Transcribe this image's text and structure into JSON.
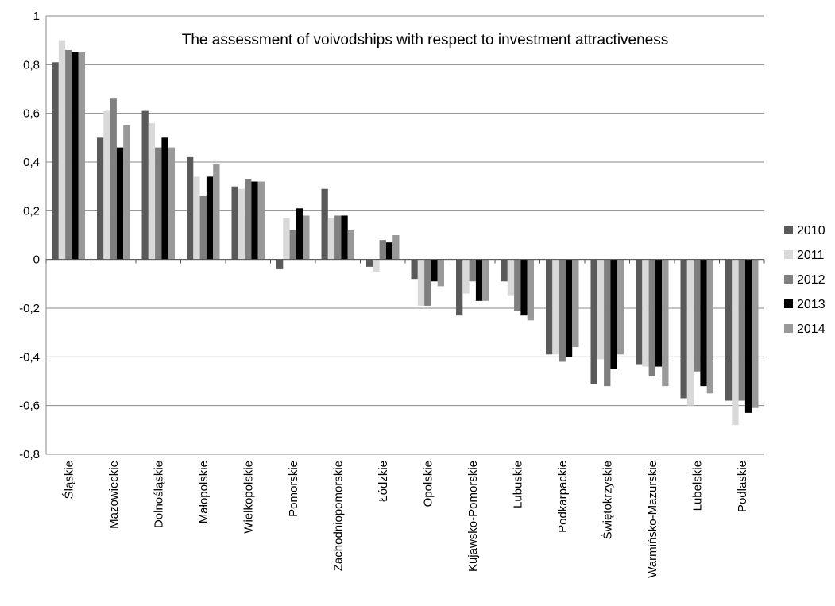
{
  "chart_data": {
    "type": "bar",
    "title": "The assessment of voivodships with respect to investment attractiveness",
    "xlabel": "",
    "ylabel": "",
    "ylim": [
      -0.8,
      1
    ],
    "yticks": [
      "1",
      "0,8",
      "0,6",
      "0,4",
      "0,2",
      "0",
      "-0,2",
      "-0,4",
      "-0,6",
      "-0,8"
    ],
    "grid": true,
    "legend_position": "right",
    "categories": [
      "Śląskie",
      "Mazowieckie",
      "Dolnośląskie",
      "Małopolskie",
      "Wielkopolskie",
      "Pomorskie",
      "Zachodniopomorskie",
      "Łódzkie",
      "Opolskie",
      "Kujawsko-Pomorskie",
      "Lubuskie",
      "Podkarpackie",
      "Świętokrzyskie",
      "Warmińsko-Mazurskie",
      "Lubelskie",
      "Podlaskie"
    ],
    "series": [
      {
        "name": "2010",
        "color": "#5a5a5a",
        "values": [
          0.81,
          0.5,
          0.61,
          0.42,
          0.3,
          -0.04,
          0.29,
          -0.03,
          -0.08,
          -0.23,
          -0.09,
          -0.39,
          -0.51,
          -0.43,
          -0.57,
          -0.58
        ]
      },
      {
        "name": "2011",
        "color": "#d9d9d9",
        "values": [
          0.9,
          0.61,
          0.56,
          0.34,
          0.29,
          0.17,
          0.17,
          -0.05,
          -0.19,
          -0.14,
          -0.15,
          -0.39,
          -0.41,
          -0.44,
          -0.6,
          -0.68
        ]
      },
      {
        "name": "2012",
        "color": "#7f7f7f",
        "values": [
          0.86,
          0.66,
          0.46,
          0.26,
          0.33,
          0.12,
          0.18,
          0.08,
          -0.19,
          -0.09,
          -0.21,
          -0.42,
          -0.52,
          -0.48,
          -0.46,
          -0.58
        ]
      },
      {
        "name": "2013",
        "color": "#000000",
        "values": [
          0.85,
          0.46,
          0.5,
          0.34,
          0.32,
          0.21,
          0.18,
          0.07,
          -0.09,
          -0.17,
          -0.23,
          -0.4,
          -0.45,
          -0.44,
          -0.52,
          -0.63
        ]
      },
      {
        "name": "2014",
        "color": "#999999",
        "values": [
          0.85,
          0.55,
          0.46,
          0.39,
          0.32,
          0.18,
          0.12,
          0.1,
          -0.11,
          -0.17,
          -0.25,
          -0.36,
          -0.39,
          -0.52,
          -0.55,
          -0.61
        ]
      }
    ]
  }
}
